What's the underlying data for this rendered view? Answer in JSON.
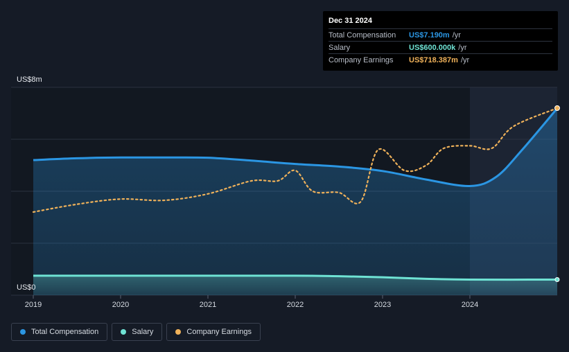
{
  "tooltip": {
    "date": "Dec 31 2024",
    "rows": [
      {
        "label": "Total Compensation",
        "value": "US$7.190m",
        "unit": "/yr"
      },
      {
        "label": "Salary",
        "value": "US$600.000k",
        "unit": "/yr"
      },
      {
        "label": "Company Earnings",
        "value": "US$718.387m",
        "unit": "/yr"
      }
    ]
  },
  "legend": [
    "Total Compensation",
    "Salary",
    "Company Earnings"
  ],
  "colors": {
    "total": "#2b96e3",
    "salary": "#6fe3d4",
    "earnings": "#f0b25a",
    "background": "#151b26"
  },
  "chart_data": {
    "type": "area",
    "y_axis_labels": [
      "US$8m",
      "US$0"
    ],
    "ylim": [
      0,
      8
    ],
    "xlim": [
      2019,
      2025
    ],
    "x_ticks": [
      "2019",
      "2020",
      "2021",
      "2022",
      "2023",
      "2024"
    ],
    "grid": true,
    "highlight_from": 2024.0,
    "series": [
      {
        "name": "Total Compensation",
        "x": [
          2019.0,
          2019.5,
          2020.0,
          2020.5,
          2021.0,
          2021.5,
          2022.0,
          2022.5,
          2023.0,
          2023.5,
          2024.0,
          2024.3,
          2024.6,
          2025.0
        ],
        "y": [
          5.2,
          5.27,
          5.3,
          5.3,
          5.29,
          5.18,
          5.05,
          4.95,
          4.78,
          4.45,
          4.2,
          4.55,
          5.6,
          7.19
        ]
      },
      {
        "name": "Salary",
        "x": [
          2019.0,
          2020.0,
          2021.0,
          2022.0,
          2022.5,
          2023.0,
          2023.5,
          2024.0,
          2025.0
        ],
        "y": [
          0.75,
          0.75,
          0.75,
          0.75,
          0.73,
          0.69,
          0.63,
          0.6,
          0.6
        ]
      },
      {
        "name": "Company Earnings",
        "x": [
          2019.0,
          2019.5,
          2020.0,
          2020.5,
          2021.0,
          2021.5,
          2021.8,
          2022.0,
          2022.2,
          2022.5,
          2022.75,
          2022.95,
          2023.25,
          2023.5,
          2023.7,
          2024.0,
          2024.25,
          2024.5,
          2025.0
        ],
        "y": [
          3.2,
          3.5,
          3.7,
          3.65,
          3.9,
          4.4,
          4.4,
          4.8,
          4.0,
          3.95,
          3.6,
          5.6,
          4.8,
          5.0,
          5.65,
          5.75,
          5.65,
          6.5,
          7.2
        ]
      }
    ]
  }
}
